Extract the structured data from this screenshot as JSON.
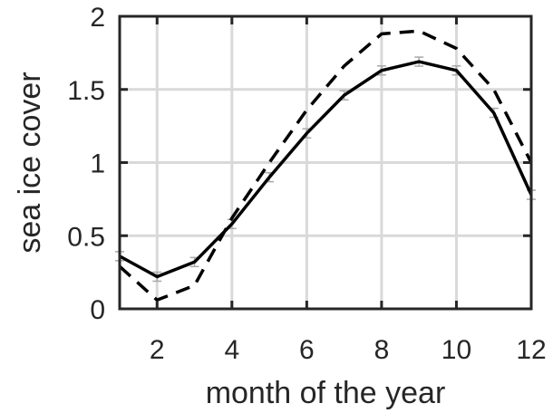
{
  "chart_data": {
    "type": "line",
    "xlabel": "month of the year",
    "ylabel": "sea ice cover",
    "xlim": [
      1,
      12
    ],
    "ylim": [
      0,
      2
    ],
    "xticks": [
      2,
      4,
      6,
      8,
      10,
      12
    ],
    "yticks": [
      0,
      0.5,
      1,
      1.5,
      2
    ],
    "xtick_labels": [
      "2",
      "4",
      "6",
      "8",
      "10",
      "12"
    ],
    "ytick_labels": [
      "0",
      "0.5",
      "1",
      "1.5",
      "2"
    ],
    "grid": true,
    "x": [
      1,
      2,
      3,
      4,
      5,
      6,
      7,
      8,
      9,
      10,
      11,
      12
    ],
    "series": [
      {
        "style": "solid",
        "color": "#000000",
        "error_bars": true,
        "values": [
          0.36,
          0.22,
          0.32,
          0.58,
          0.9,
          1.2,
          1.46,
          1.63,
          1.69,
          1.63,
          1.34,
          0.78
        ]
      },
      {
        "style": "dashed",
        "color": "#000000",
        "error_bars": false,
        "values": [
          0.29,
          0.06,
          0.16,
          0.62,
          1.0,
          1.36,
          1.66,
          1.88,
          1.9,
          1.78,
          1.5,
          1.0
        ]
      }
    ]
  }
}
